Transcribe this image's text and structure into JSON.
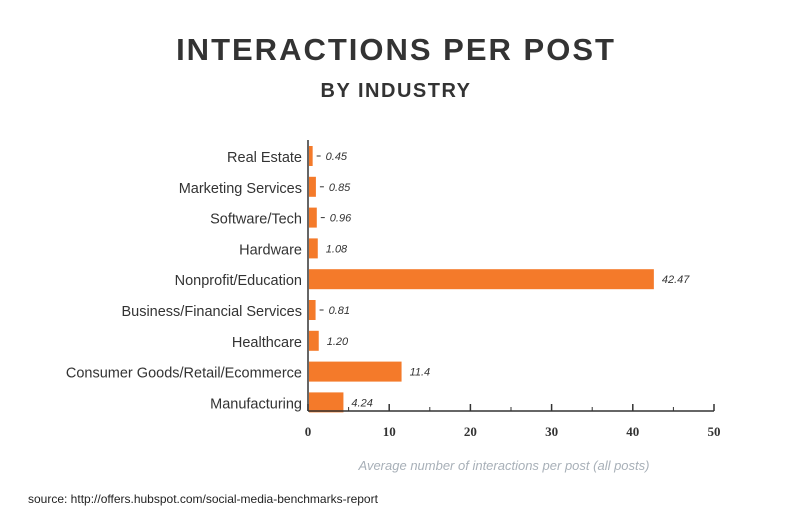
{
  "colors": {
    "bar": "#f47a2a",
    "axis": "#333333",
    "cat_text": "#333333",
    "value_text": "#333333",
    "xlabel_text": "#a8b0b8"
  },
  "source": "source: http://offers.hubspot.com/social-media-benchmarks-report",
  "chart_data": {
    "type": "bar",
    "orientation": "horizontal",
    "title": "INTERACTIONS PER POST",
    "subtitle": "BY INDUSTRY",
    "xlabel": "Average number of interactions per post (all posts)",
    "categories": [
      "Real Estate",
      "Marketing Services",
      "Software/Tech",
      "Hardware",
      "Nonprofit/Education",
      "Business/Financial Services",
      "Healthcare",
      "Consumer Goods/Retail/Ecommerce",
      "Manufacturing"
    ],
    "values": [
      0.45,
      0.85,
      0.96,
      1.08,
      42.47,
      0.81,
      1.2,
      11.4,
      4.24
    ],
    "value_labels": [
      "0.45",
      "0.85",
      "0.96",
      "1.08",
      "42.47",
      "0.81",
      "1.20",
      "11.4",
      "4.24"
    ],
    "xlim": [
      0,
      50
    ],
    "xticks": [
      0,
      10,
      20,
      30,
      40,
      50
    ],
    "xtick_labels": [
      "0",
      "10",
      "20",
      "30",
      "40",
      "50"
    ],
    "grid": false,
    "legend": "none"
  }
}
